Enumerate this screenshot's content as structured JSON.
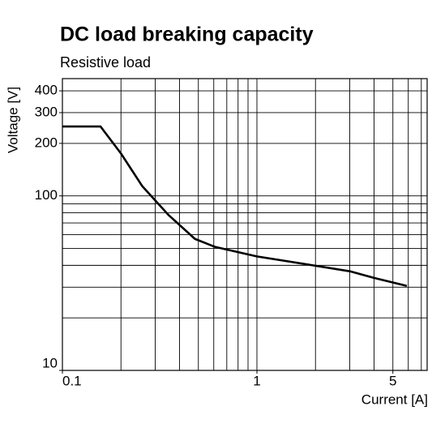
{
  "chart_data": {
    "type": "line",
    "title": "DC load breaking capacity",
    "subtitle": "Resistive load",
    "x_label": "Current [A]",
    "y_label": "Voltage [V]",
    "log_x": true,
    "log_y": true,
    "xlim": [
      0.1,
      7.5
    ],
    "ylim": [
      10,
      470
    ],
    "xticks": [
      0.1,
      1,
      5
    ],
    "yticks": [
      10,
      100,
      200,
      300,
      400
    ],
    "xgrid": [
      0.1,
      0.2,
      0.3,
      0.4,
      0.5,
      0.6,
      0.7,
      0.8,
      0.9,
      1,
      2,
      3,
      4,
      5,
      6,
      7
    ],
    "ygrid": [
      10,
      20,
      30,
      40,
      50,
      60,
      70,
      80,
      90,
      100,
      200,
      300,
      400
    ],
    "grid": true,
    "series": [
      {
        "color": "#000000",
        "x": [
          0.1,
          0.157,
          0.2,
          0.257,
          0.35,
          0.48,
          0.61,
          1,
          1.94,
          3.0,
          4.0,
          5.9
        ],
        "values": [
          250,
          250,
          175,
          114,
          78,
          56.7,
          51,
          45,
          40,
          37,
          33.9,
          30.5
        ]
      }
    ]
  }
}
